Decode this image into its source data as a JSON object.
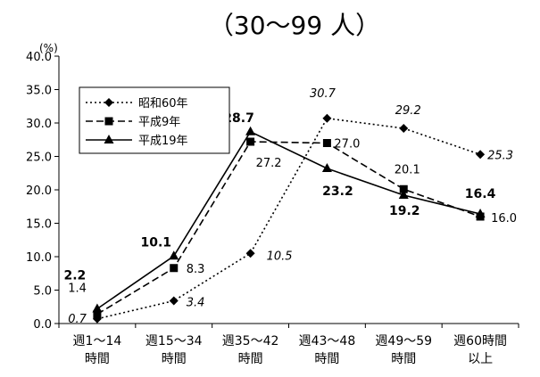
{
  "chart_data": {
    "type": "line",
    "title": "（30～99 人）",
    "unit_label": "(%)",
    "ylim": [
      0,
      40
    ],
    "yticks": [
      "0.0",
      "5.0",
      "10.0",
      "15.0",
      "20.0",
      "25.0",
      "30.0",
      "35.0",
      "40.0"
    ],
    "categories": [
      [
        "週1～14",
        "時間"
      ],
      [
        "週15～34",
        "時間"
      ],
      [
        "週35～42",
        "時間"
      ],
      [
        "週43～48",
        "時間"
      ],
      [
        "週49～59",
        "時間"
      ],
      [
        "週60時間",
        "以上"
      ]
    ],
    "legend_position": "top-left",
    "series": [
      {
        "name": "昭和60年",
        "marker": "diamond",
        "dash": "dotted",
        "values": [
          0.7,
          3.4,
          10.5,
          30.7,
          29.2,
          25.3
        ],
        "labels": [
          "0.7",
          "3.4",
          "10.5",
          "30.7",
          "29.2",
          "25.3"
        ],
        "label_style": "italic"
      },
      {
        "name": "平成9年",
        "marker": "square",
        "dash": "dashed",
        "values": [
          1.4,
          8.3,
          27.2,
          27.0,
          20.1,
          16.0
        ],
        "labels": [
          "1.4",
          "8.3",
          "27.2",
          "27.0",
          "20.1",
          "16.0"
        ],
        "label_style": "normal"
      },
      {
        "name": "平成19年",
        "marker": "triangle",
        "dash": "solid",
        "values": [
          2.2,
          10.1,
          28.7,
          23.2,
          19.2,
          16.4
        ],
        "labels": [
          "2.2",
          "10.1",
          "28.7",
          "23.2",
          "19.2",
          "16.4"
        ],
        "label_style": "bold"
      }
    ]
  }
}
